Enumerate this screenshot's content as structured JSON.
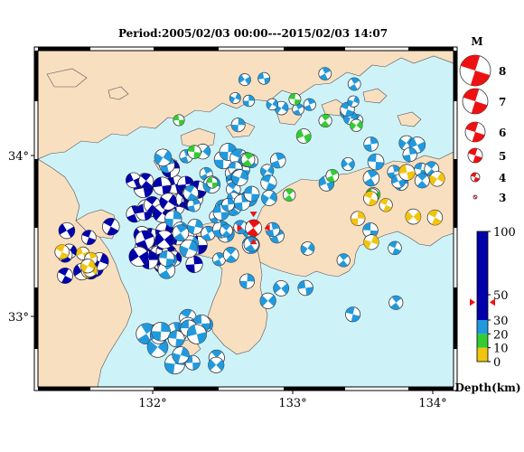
{
  "title": "Period:2005/02/03 00:00---2015/02/03 14:07",
  "map": {
    "lat_ticks": [
      {
        "label": "34°",
        "lat": 34
      },
      {
        "label": "33°",
        "lat": 33
      }
    ],
    "lon_ticks": [
      {
        "label": "132°",
        "lon": 132
      },
      {
        "label": "133°",
        "lon": 133
      },
      {
        "label": "134°",
        "lon": 134
      }
    ],
    "colors": {
      "sea": "#cdf3f9",
      "land": "#f8dfc0",
      "coast": "#555555"
    }
  },
  "magnitude_legend": {
    "title": "M",
    "items": [
      {
        "label": "8",
        "mag": 8
      },
      {
        "label": "7",
        "mag": 7
      },
      {
        "label": "6",
        "mag": 6
      },
      {
        "label": "5",
        "mag": 5
      },
      {
        "label": "4",
        "mag": 4
      },
      {
        "label": "3",
        "mag": 3
      }
    ]
  },
  "depth_legend": {
    "title": "Depth(km)",
    "ticks": [
      {
        "label": "100",
        "depth": 100
      },
      {
        "label": "50",
        "depth": 50
      },
      {
        "label": "30",
        "depth": 30
      },
      {
        "label": "20",
        "depth": 20
      },
      {
        "label": "10",
        "depth": 10
      },
      {
        "label": "0",
        "depth": 0
      }
    ],
    "bands": [
      {
        "from": 0,
        "to": 10,
        "color": "#f1c40f"
      },
      {
        "from": 10,
        "to": 20,
        "color": "#33cc33"
      },
      {
        "from": 20,
        "to": 30,
        "color": "#2299dd"
      },
      {
        "from": 30,
        "to": 100,
        "color": "#0000aa"
      }
    ],
    "marker_depth": 44
  },
  "main_event": {
    "lon": 132.72,
    "lat": 33.55,
    "mag": 5.5,
    "color": "#ee1111"
  }
}
